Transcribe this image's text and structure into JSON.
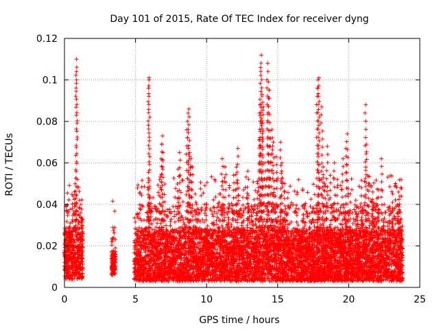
{
  "chart_data": {
    "type": "scatter",
    "title": "Day 101 of 2015, Rate Of TEC Index for receiver dyng",
    "xlabel": "GPS time / hours",
    "ylabel": "ROTI / TECUs",
    "xlim": [
      0,
      25
    ],
    "ylim": [
      0,
      0.12
    ],
    "x_ticks": [
      0,
      5,
      10,
      15,
      20,
      25
    ],
    "y_ticks": [
      0,
      0.02,
      0.04,
      0.06,
      0.08,
      0.1,
      0.12
    ],
    "x_tick_labels": [
      "0",
      "5",
      "10",
      "15",
      "20",
      "25"
    ],
    "y_tick_labels": [
      "0",
      "0.02",
      "0.04",
      "0.06",
      "0.08",
      "0.1",
      "0.12"
    ],
    "grid": true,
    "marker": "plus",
    "series": [
      {
        "name": "ROTI",
        "color": "#ff0000",
        "segments": [
          {
            "start": 0.0,
            "end": 1.3,
            "base_min": 0.004,
            "base_max": 0.028
          },
          {
            "start": 3.3,
            "end": 3.6,
            "base_min": 0.006,
            "base_max": 0.018
          },
          {
            "start": 4.9,
            "end": 23.8,
            "base_min": 0.003,
            "base_max": 0.028
          }
        ],
        "spikes": [
          [
            0.25,
            0.027
          ],
          [
            0.4,
            0.031
          ],
          [
            0.55,
            0.038
          ],
          [
            0.6,
            0.044
          ],
          [
            0.7,
            0.046
          ],
          [
            0.75,
            0.05
          ],
          [
            0.85,
            0.104
          ],
          [
            0.85,
            0.11
          ],
          [
            1.05,
            0.042
          ],
          [
            1.15,
            0.036
          ],
          [
            1.25,
            0.03
          ],
          [
            5.9,
            0.047
          ],
          [
            6.0,
            0.043
          ],
          [
            5.8,
            0.036
          ],
          [
            5.95,
            0.1
          ],
          [
            5.95,
            0.101
          ],
          [
            6.5,
            0.037
          ],
          [
            6.7,
            0.052
          ],
          [
            6.8,
            0.062
          ],
          [
            6.85,
            0.069
          ],
          [
            6.9,
            0.073
          ],
          [
            8.0,
            0.057
          ],
          [
            8.1,
            0.065
          ],
          [
            8.6,
            0.076
          ],
          [
            8.7,
            0.084
          ],
          [
            8.75,
            0.086
          ],
          [
            8.8,
            0.065
          ],
          [
            8.9,
            0.062
          ],
          [
            9.0,
            0.058
          ],
          [
            9.2,
            0.045
          ],
          [
            9.3,
            0.04
          ],
          [
            9.5,
            0.036
          ],
          [
            10.9,
            0.045
          ],
          [
            11.1,
            0.062
          ],
          [
            11.3,
            0.058
          ],
          [
            11.6,
            0.048
          ],
          [
            11.9,
            0.054
          ],
          [
            12.1,
            0.058
          ],
          [
            12.2,
            0.067
          ],
          [
            12.6,
            0.047
          ],
          [
            12.9,
            0.056
          ],
          [
            13.2,
            0.038
          ],
          [
            13.6,
            0.05
          ],
          [
            13.7,
            0.071
          ],
          [
            13.75,
            0.088
          ],
          [
            13.8,
            0.106
          ],
          [
            13.85,
            0.112
          ],
          [
            13.9,
            0.093
          ],
          [
            14.0,
            0.087
          ],
          [
            14.1,
            0.06
          ],
          [
            14.3,
            0.108
          ],
          [
            14.35,
            0.099
          ],
          [
            14.4,
            0.095
          ],
          [
            14.5,
            0.072
          ],
          [
            14.6,
            0.076
          ],
          [
            14.7,
            0.07
          ],
          [
            14.9,
            0.063
          ],
          [
            15.2,
            0.07
          ],
          [
            15.3,
            0.06
          ],
          [
            15.5,
            0.05
          ],
          [
            15.7,
            0.043
          ],
          [
            16.3,
            0.038
          ],
          [
            16.8,
            0.035
          ],
          [
            17.3,
            0.039
          ],
          [
            17.8,
            0.096
          ],
          [
            17.85,
            0.1
          ],
          [
            17.9,
            0.101
          ],
          [
            18.1,
            0.087
          ],
          [
            17.9,
            0.059
          ],
          [
            18.2,
            0.058
          ],
          [
            18.3,
            0.05
          ],
          [
            18.5,
            0.068
          ],
          [
            18.7,
            0.054
          ],
          [
            19.0,
            0.06
          ],
          [
            19.2,
            0.052
          ],
          [
            19.6,
            0.062
          ],
          [
            19.8,
            0.067
          ],
          [
            19.9,
            0.074
          ],
          [
            20.1,
            0.045
          ],
          [
            20.5,
            0.042
          ],
          [
            20.9,
            0.048
          ],
          [
            21.2,
            0.088
          ],
          [
            21.25,
            0.069
          ],
          [
            21.4,
            0.05
          ],
          [
            21.7,
            0.046
          ],
          [
            22.1,
            0.047
          ],
          [
            22.3,
            0.062
          ],
          [
            22.5,
            0.04
          ],
          [
            22.9,
            0.038
          ],
          [
            23.1,
            0.045
          ],
          [
            23.5,
            0.046
          ],
          [
            23.6,
            0.044
          ]
        ]
      }
    ]
  }
}
